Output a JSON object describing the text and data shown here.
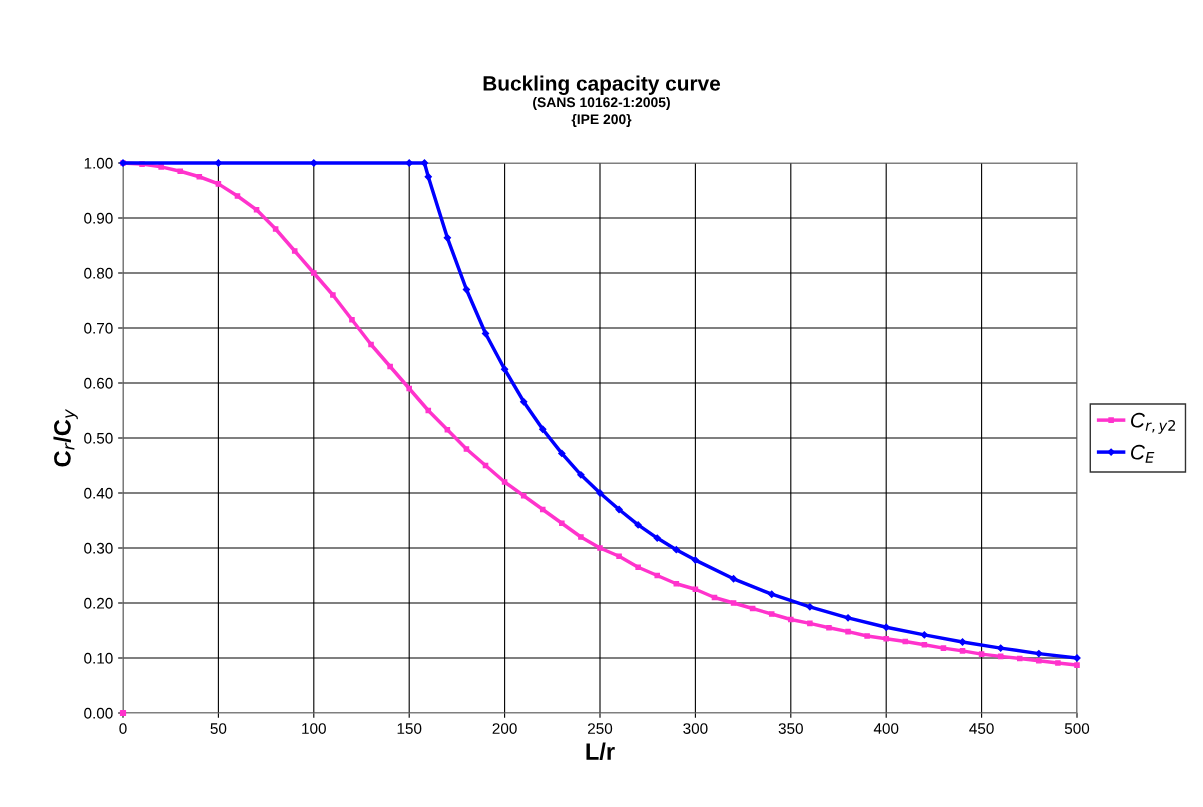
{
  "chart_data": {
    "type": "line",
    "title": "Buckling capacity curve",
    "subtitle": "(SANS 10162-1:2005)\n{IPE 200}",
    "xlabel": "L/r",
    "ylabel": "C$_{r}$/C$_{y}$",
    "xlim": [
      0,
      500
    ],
    "xticks": [
      0,
      50,
      100,
      150,
      200,
      250,
      300,
      350,
      400,
      450,
      500
    ],
    "ylim": [
      0,
      1
    ],
    "yticks": [
      {
        "value": 0,
        "label": "0.00"
      },
      {
        "value": 0.1,
        "label": "0.10"
      },
      {
        "value": 0.2,
        "label": "0.20"
      },
      {
        "value": 0.3,
        "label": "0.30"
      },
      {
        "value": 0.4,
        "label": "0.40"
      },
      {
        "value": 0.5,
        "label": "0.50"
      },
      {
        "value": 0.6,
        "label": "0.60"
      },
      {
        "value": 0.7,
        "label": "0.70"
      },
      {
        "value": 0.8,
        "label": "0.80"
      },
      {
        "value": 0.9,
        "label": "0.90"
      },
      {
        "value": 1,
        "label": "1.00"
      }
    ],
    "grid": true,
    "legend": "right",
    "series": [
      {
        "name": "C$_{r,y2}$",
        "color": "#ff33cc",
        "marker": "square",
        "x": [
          0,
          10,
          20,
          30,
          40,
          50,
          60,
          70,
          80,
          90,
          100,
          110,
          120,
          130,
          140,
          150,
          160,
          170,
          180,
          190,
          200,
          210,
          220,
          230,
          240,
          250,
          260,
          270,
          280,
          290,
          300,
          310,
          320,
          330,
          340,
          350,
          360,
          370,
          380,
          390,
          400,
          410,
          420,
          430,
          440,
          450,
          460,
          470,
          480,
          490,
          500
        ],
        "values": [
          1.0,
          0.998,
          0.993,
          0.985,
          0.975,
          0.962,
          0.94,
          0.915,
          0.88,
          0.84,
          0.8,
          0.76,
          0.715,
          0.67,
          0.63,
          0.59,
          0.55,
          0.515,
          0.48,
          0.45,
          0.42,
          0.395,
          0.37,
          0.345,
          0.32,
          0.3,
          0.285,
          0.265,
          0.25,
          0.235,
          0.225,
          0.21,
          0.2,
          0.19,
          0.18,
          0.17,
          0.163,
          0.155,
          0.148,
          0.14,
          0.135,
          0.13,
          0.124,
          0.118,
          0.113,
          0.107,
          0.103,
          0.099,
          0.095,
          0.091,
          0.087
        ]
      },
      {
        "name": "C$_{E}$",
        "color": "#0000ff",
        "marker": "diamond",
        "x": [
          0,
          50,
          100,
          150,
          158,
          160,
          170,
          180,
          190,
          200,
          210,
          220,
          230,
          240,
          250,
          260,
          270,
          280,
          290,
          300,
          320,
          340,
          360,
          380,
          400,
          420,
          440,
          460,
          480,
          500
        ],
        "values": [
          1.0,
          1.0,
          1.0,
          1.0,
          1.0,
          0.975,
          0.864,
          0.77,
          0.69,
          0.625,
          0.566,
          0.516,
          0.472,
          0.433,
          0.4,
          0.37,
          0.342,
          0.318,
          0.297,
          0.278,
          0.244,
          0.216,
          0.193,
          0.173,
          0.156,
          0.142,
          0.129,
          0.118,
          0.108,
          0.1
        ]
      },
      {
        "type": "scatter",
        "color": "#ff33cc",
        "marker": "square",
        "x": [
          0
        ],
        "values": [
          0
        ]
      }
    ]
  }
}
